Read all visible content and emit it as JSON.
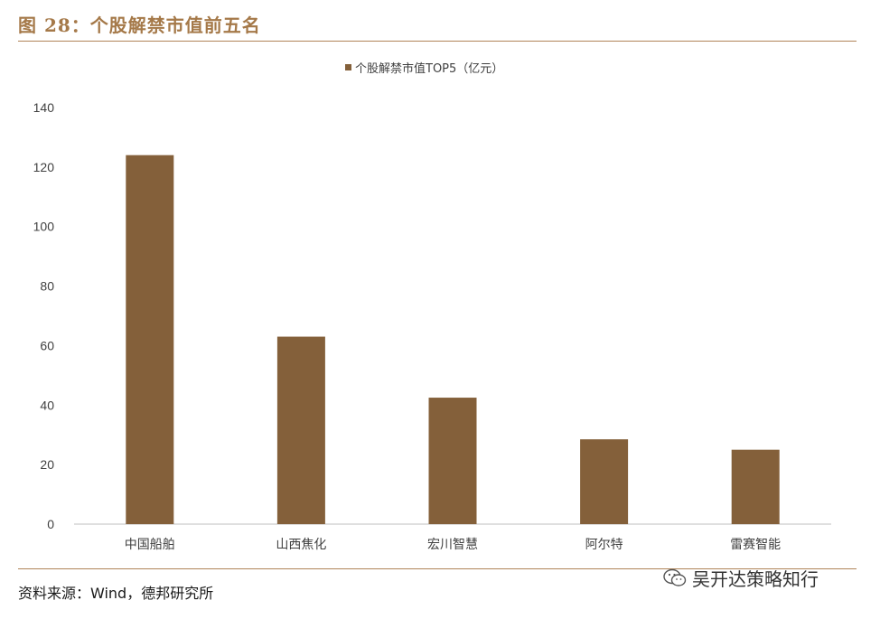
{
  "figure": {
    "title": "图 28：个股解禁市值前五名",
    "source": "资料来源：Wind，德邦研究所",
    "watermark": "吴开达策略知行",
    "watermark_icon": "wechat-icon"
  },
  "colors": {
    "bar": "#84603a",
    "accent": "#a57949",
    "axis": "#bfbfbf",
    "text": "#404040"
  },
  "chart_data": {
    "type": "bar",
    "categories": [
      "中国船舶",
      "山西焦化",
      "宏川智慧",
      "阿尔特",
      "雷赛智能"
    ],
    "series": [
      {
        "name": "个股解禁市值TOP5（亿元）",
        "values": [
          124,
          63,
          42.5,
          28.5,
          25
        ]
      }
    ],
    "ylim": [
      0,
      140
    ],
    "yticks": [
      0,
      20,
      40,
      60,
      80,
      100,
      120,
      140
    ],
    "legend_position": "top-center",
    "grid": false,
    "xlabel": "",
    "ylabel": ""
  }
}
